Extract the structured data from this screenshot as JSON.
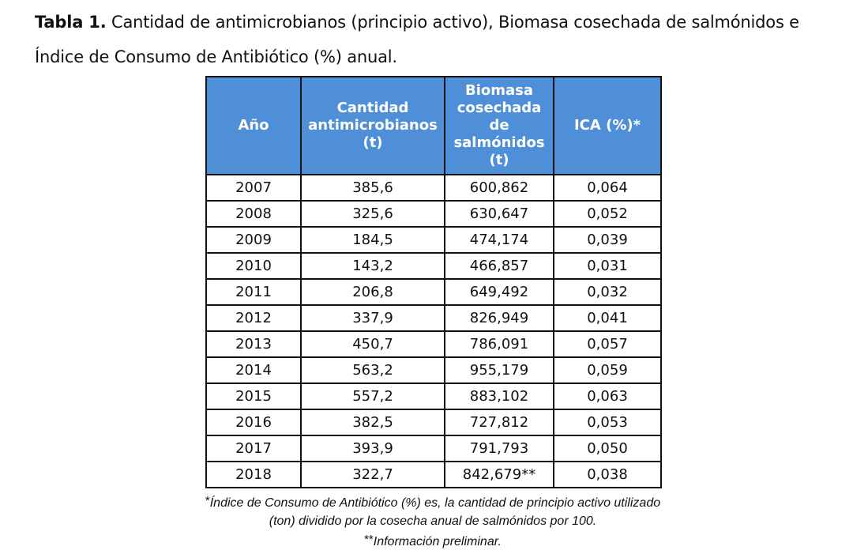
{
  "caption": {
    "label": "Tabla 1.",
    "text": " Cantidad de antimicrobianos (principio activo), Biomasa cosechada de salmónidos e Índice de Consumo de Antibiótico (%) anual."
  },
  "table": {
    "headers": {
      "year": "Año",
      "antimicrobials": "Cantidad antimicrobianos (t)",
      "biomass": "Biomasa cosechada de salmónidos (t)",
      "ica": "ICA (%)*"
    },
    "rows": [
      {
        "year": "2007",
        "antimicrobials": "385,6",
        "biomass": "600,862",
        "ica": "0,064"
      },
      {
        "year": "2008",
        "antimicrobials": "325,6",
        "biomass": "630,647",
        "ica": "0,052"
      },
      {
        "year": "2009",
        "antimicrobials": "184,5",
        "biomass": "474,174",
        "ica": "0,039"
      },
      {
        "year": "2010",
        "antimicrobials": "143,2",
        "biomass": "466,857",
        "ica": "0,031"
      },
      {
        "year": "2011",
        "antimicrobials": "206,8",
        "biomass": "649,492",
        "ica": "0,032"
      },
      {
        "year": "2012",
        "antimicrobials": "337,9",
        "biomass": "826,949",
        "ica": "0,041"
      },
      {
        "year": "2013",
        "antimicrobials": "450,7",
        "biomass": "786,091",
        "ica": "0,057"
      },
      {
        "year": "2014",
        "antimicrobials": "563,2",
        "biomass": "955,179",
        "ica": "0,059"
      },
      {
        "year": "2015",
        "antimicrobials": "557,2",
        "biomass": "883,102",
        "ica": "0,063"
      },
      {
        "year": "2016",
        "antimicrobials": "382,5",
        "biomass": "727,812",
        "ica": "0,053"
      },
      {
        "year": "2017",
        "antimicrobials": "393,9",
        "biomass": "791,793",
        "ica": "0,050"
      },
      {
        "year": "2018",
        "antimicrobials": "322,7",
        "biomass": "842,679**",
        "ica": "0,038"
      }
    ]
  },
  "notes": {
    "star1": "*",
    "line1": "Índice de Consumo de Antibiótico (%) es, la cantidad de principio activo utilizado",
    "line2": "(ton) dividido por la cosecha anual de salmónidos por 100.",
    "star2": "**",
    "line3": "Información preliminar."
  },
  "colors": {
    "header_bg": "#4f8fd8",
    "header_text": "#ffffff",
    "border": "#111111"
  }
}
